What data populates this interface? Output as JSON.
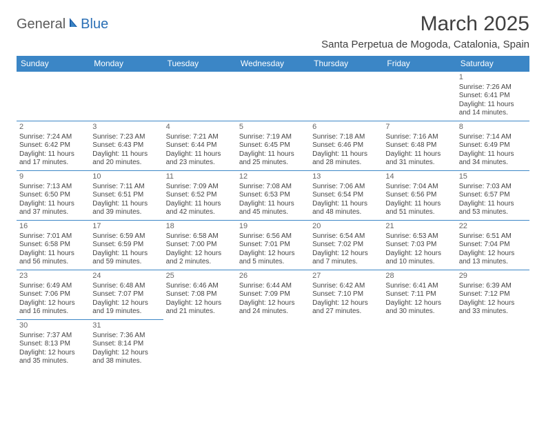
{
  "logo": {
    "general": "General",
    "blue": "Blue"
  },
  "title": "March 2025",
  "location": "Santa Perpetua de Mogoda, Catalonia, Spain",
  "weekdays": [
    "Sunday",
    "Monday",
    "Tuesday",
    "Wednesday",
    "Thursday",
    "Friday",
    "Saturday"
  ],
  "colors": {
    "header_bg": "#3b86c6",
    "header_text": "#ffffff",
    "border": "#3b86c6",
    "logo_gray": "#5a5a5a",
    "logo_blue": "#2a6fb5",
    "text": "#444444"
  },
  "weeks": [
    [
      null,
      null,
      null,
      null,
      null,
      null,
      {
        "n": "1",
        "sr": "Sunrise: 7:26 AM",
        "ss": "Sunset: 6:41 PM",
        "d1": "Daylight: 11 hours",
        "d2": "and 14 minutes."
      }
    ],
    [
      {
        "n": "2",
        "sr": "Sunrise: 7:24 AM",
        "ss": "Sunset: 6:42 PM",
        "d1": "Daylight: 11 hours",
        "d2": "and 17 minutes."
      },
      {
        "n": "3",
        "sr": "Sunrise: 7:23 AM",
        "ss": "Sunset: 6:43 PM",
        "d1": "Daylight: 11 hours",
        "d2": "and 20 minutes."
      },
      {
        "n": "4",
        "sr": "Sunrise: 7:21 AM",
        "ss": "Sunset: 6:44 PM",
        "d1": "Daylight: 11 hours",
        "d2": "and 23 minutes."
      },
      {
        "n": "5",
        "sr": "Sunrise: 7:19 AM",
        "ss": "Sunset: 6:45 PM",
        "d1": "Daylight: 11 hours",
        "d2": "and 25 minutes."
      },
      {
        "n": "6",
        "sr": "Sunrise: 7:18 AM",
        "ss": "Sunset: 6:46 PM",
        "d1": "Daylight: 11 hours",
        "d2": "and 28 minutes."
      },
      {
        "n": "7",
        "sr": "Sunrise: 7:16 AM",
        "ss": "Sunset: 6:48 PM",
        "d1": "Daylight: 11 hours",
        "d2": "and 31 minutes."
      },
      {
        "n": "8",
        "sr": "Sunrise: 7:14 AM",
        "ss": "Sunset: 6:49 PM",
        "d1": "Daylight: 11 hours",
        "d2": "and 34 minutes."
      }
    ],
    [
      {
        "n": "9",
        "sr": "Sunrise: 7:13 AM",
        "ss": "Sunset: 6:50 PM",
        "d1": "Daylight: 11 hours",
        "d2": "and 37 minutes."
      },
      {
        "n": "10",
        "sr": "Sunrise: 7:11 AM",
        "ss": "Sunset: 6:51 PM",
        "d1": "Daylight: 11 hours",
        "d2": "and 39 minutes."
      },
      {
        "n": "11",
        "sr": "Sunrise: 7:09 AM",
        "ss": "Sunset: 6:52 PM",
        "d1": "Daylight: 11 hours",
        "d2": "and 42 minutes."
      },
      {
        "n": "12",
        "sr": "Sunrise: 7:08 AM",
        "ss": "Sunset: 6:53 PM",
        "d1": "Daylight: 11 hours",
        "d2": "and 45 minutes."
      },
      {
        "n": "13",
        "sr": "Sunrise: 7:06 AM",
        "ss": "Sunset: 6:54 PM",
        "d1": "Daylight: 11 hours",
        "d2": "and 48 minutes."
      },
      {
        "n": "14",
        "sr": "Sunrise: 7:04 AM",
        "ss": "Sunset: 6:56 PM",
        "d1": "Daylight: 11 hours",
        "d2": "and 51 minutes."
      },
      {
        "n": "15",
        "sr": "Sunrise: 7:03 AM",
        "ss": "Sunset: 6:57 PM",
        "d1": "Daylight: 11 hours",
        "d2": "and 53 minutes."
      }
    ],
    [
      {
        "n": "16",
        "sr": "Sunrise: 7:01 AM",
        "ss": "Sunset: 6:58 PM",
        "d1": "Daylight: 11 hours",
        "d2": "and 56 minutes."
      },
      {
        "n": "17",
        "sr": "Sunrise: 6:59 AM",
        "ss": "Sunset: 6:59 PM",
        "d1": "Daylight: 11 hours",
        "d2": "and 59 minutes."
      },
      {
        "n": "18",
        "sr": "Sunrise: 6:58 AM",
        "ss": "Sunset: 7:00 PM",
        "d1": "Daylight: 12 hours",
        "d2": "and 2 minutes."
      },
      {
        "n": "19",
        "sr": "Sunrise: 6:56 AM",
        "ss": "Sunset: 7:01 PM",
        "d1": "Daylight: 12 hours",
        "d2": "and 5 minutes."
      },
      {
        "n": "20",
        "sr": "Sunrise: 6:54 AM",
        "ss": "Sunset: 7:02 PM",
        "d1": "Daylight: 12 hours",
        "d2": "and 7 minutes."
      },
      {
        "n": "21",
        "sr": "Sunrise: 6:53 AM",
        "ss": "Sunset: 7:03 PM",
        "d1": "Daylight: 12 hours",
        "d2": "and 10 minutes."
      },
      {
        "n": "22",
        "sr": "Sunrise: 6:51 AM",
        "ss": "Sunset: 7:04 PM",
        "d1": "Daylight: 12 hours",
        "d2": "and 13 minutes."
      }
    ],
    [
      {
        "n": "23",
        "sr": "Sunrise: 6:49 AM",
        "ss": "Sunset: 7:06 PM",
        "d1": "Daylight: 12 hours",
        "d2": "and 16 minutes."
      },
      {
        "n": "24",
        "sr": "Sunrise: 6:48 AM",
        "ss": "Sunset: 7:07 PM",
        "d1": "Daylight: 12 hours",
        "d2": "and 19 minutes."
      },
      {
        "n": "25",
        "sr": "Sunrise: 6:46 AM",
        "ss": "Sunset: 7:08 PM",
        "d1": "Daylight: 12 hours",
        "d2": "and 21 minutes."
      },
      {
        "n": "26",
        "sr": "Sunrise: 6:44 AM",
        "ss": "Sunset: 7:09 PM",
        "d1": "Daylight: 12 hours",
        "d2": "and 24 minutes."
      },
      {
        "n": "27",
        "sr": "Sunrise: 6:42 AM",
        "ss": "Sunset: 7:10 PM",
        "d1": "Daylight: 12 hours",
        "d2": "and 27 minutes."
      },
      {
        "n": "28",
        "sr": "Sunrise: 6:41 AM",
        "ss": "Sunset: 7:11 PM",
        "d1": "Daylight: 12 hours",
        "d2": "and 30 minutes."
      },
      {
        "n": "29",
        "sr": "Sunrise: 6:39 AM",
        "ss": "Sunset: 7:12 PM",
        "d1": "Daylight: 12 hours",
        "d2": "and 33 minutes."
      }
    ],
    [
      {
        "n": "30",
        "sr": "Sunrise: 7:37 AM",
        "ss": "Sunset: 8:13 PM",
        "d1": "Daylight: 12 hours",
        "d2": "and 35 minutes."
      },
      {
        "n": "31",
        "sr": "Sunrise: 7:36 AM",
        "ss": "Sunset: 8:14 PM",
        "d1": "Daylight: 12 hours",
        "d2": "and 38 minutes."
      },
      null,
      null,
      null,
      null,
      null
    ]
  ]
}
